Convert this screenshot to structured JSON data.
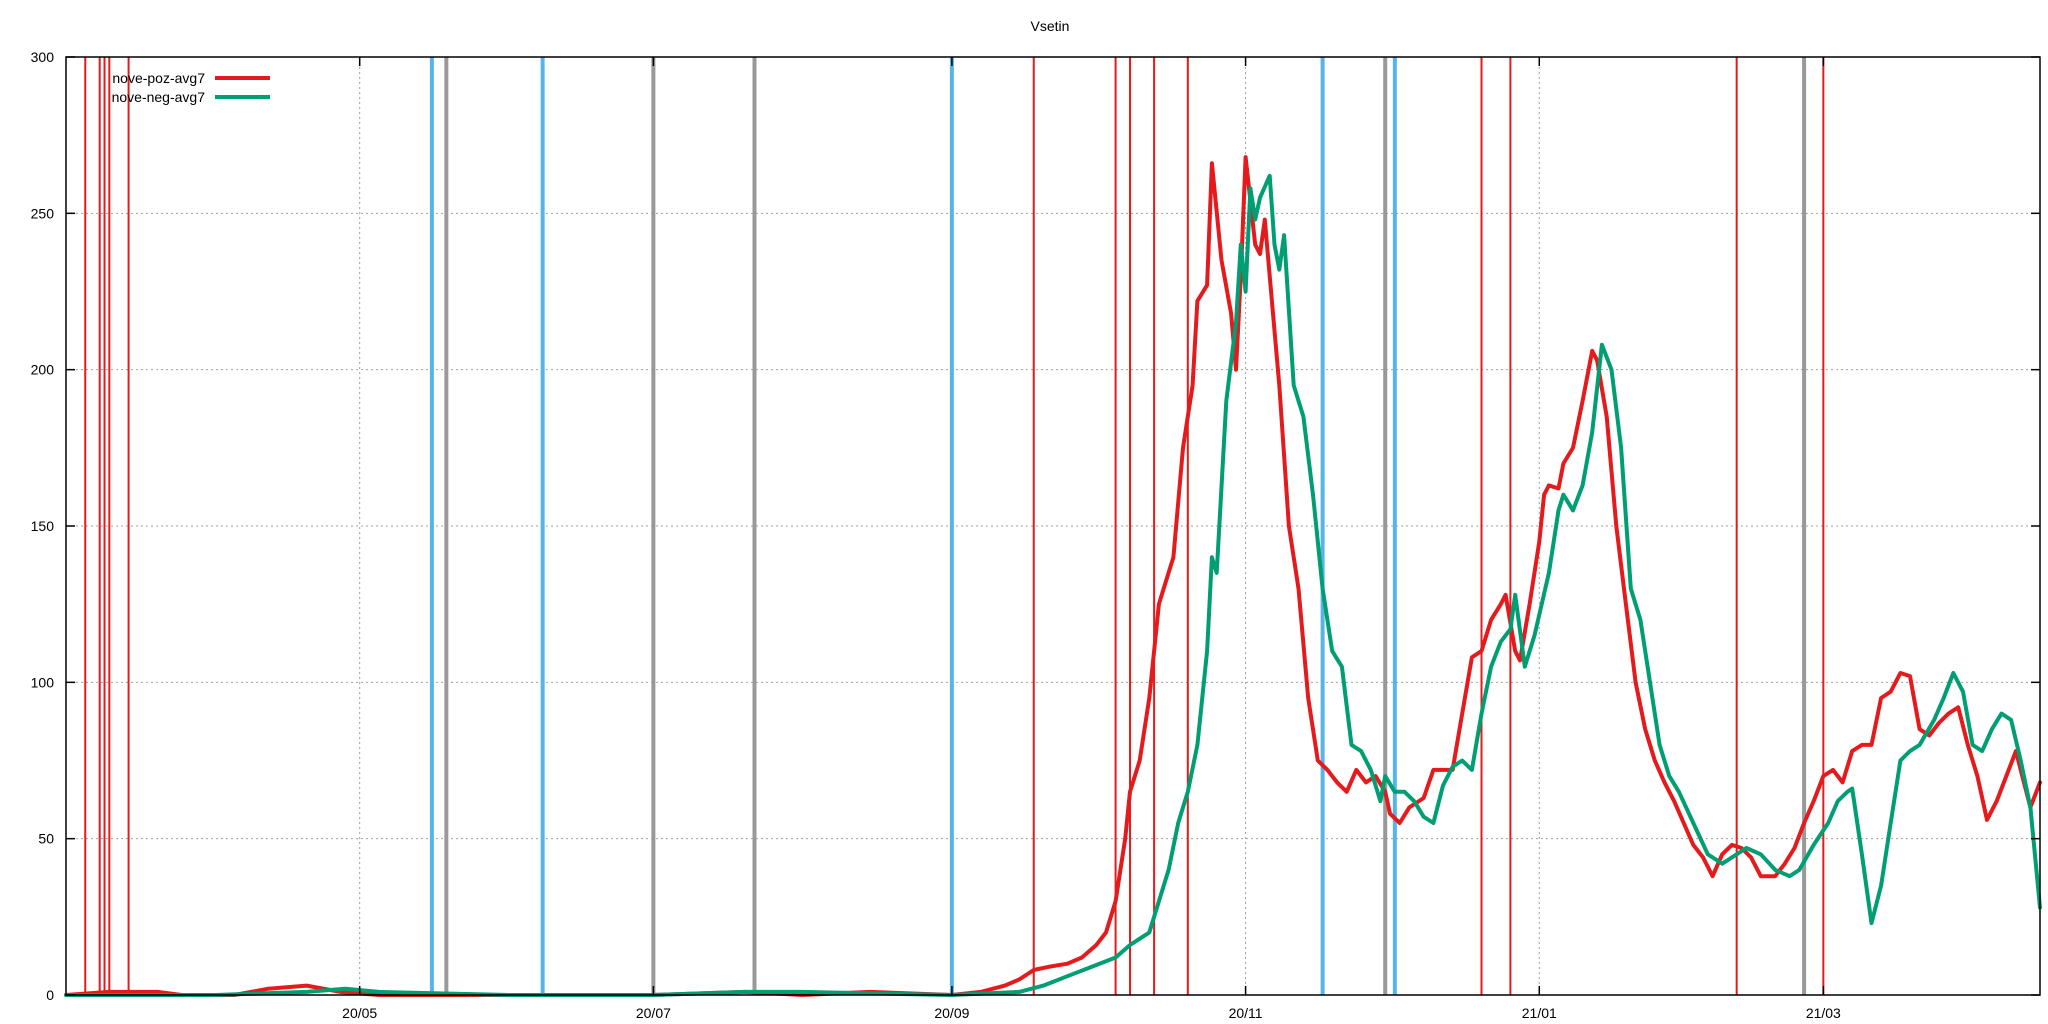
{
  "chart_data": {
    "type": "line",
    "title": "Vsetin",
    "xlabel": "",
    "ylabel": "",
    "x_axis": {
      "type": "date",
      "range": [
        "2020-03-01",
        "2021-04-15"
      ],
      "ticks": [
        {
          "date": "2020-05-01",
          "label": "20/05"
        },
        {
          "date": "2020-07-01",
          "label": "20/07"
        },
        {
          "date": "2020-09-01",
          "label": "20/09"
        },
        {
          "date": "2020-11-01",
          "label": "20/11"
        },
        {
          "date": "2021-01-01",
          "label": "21/01"
        },
        {
          "date": "2021-03-01",
          "label": "21/03"
        }
      ]
    },
    "y_axis": {
      "range": [
        0,
        300
      ],
      "ticks": [
        0,
        50,
        100,
        150,
        200,
        250,
        300
      ]
    },
    "grid": true,
    "legend_position": "top-left",
    "series": [
      {
        "name": "nove-poz-avg7",
        "color": "#e41a1c",
        "points": [
          [
            "2020-03-01",
            0
          ],
          [
            "2020-03-10",
            1
          ],
          [
            "2020-03-20",
            1
          ],
          [
            "2020-03-25",
            0
          ],
          [
            "2020-04-05",
            0
          ],
          [
            "2020-04-12",
            2
          ],
          [
            "2020-04-20",
            3
          ],
          [
            "2020-04-27",
            1
          ],
          [
            "2020-05-05",
            0
          ],
          [
            "2020-06-01",
            0
          ],
          [
            "2020-07-01",
            0
          ],
          [
            "2020-07-20",
            1
          ],
          [
            "2020-08-01",
            0
          ],
          [
            "2020-08-15",
            1
          ],
          [
            "2020-09-01",
            0
          ],
          [
            "2020-09-07",
            1
          ],
          [
            "2020-09-12",
            3
          ],
          [
            "2020-09-15",
            5
          ],
          [
            "2020-09-18",
            8
          ],
          [
            "2020-09-21",
            9
          ],
          [
            "2020-09-25",
            10
          ],
          [
            "2020-09-28",
            12
          ],
          [
            "2020-10-01",
            16
          ],
          [
            "2020-10-03",
            20
          ],
          [
            "2020-10-05",
            30
          ],
          [
            "2020-10-07",
            50
          ],
          [
            "2020-10-08",
            65
          ],
          [
            "2020-10-10",
            75
          ],
          [
            "2020-10-12",
            95
          ],
          [
            "2020-10-14",
            125
          ],
          [
            "2020-10-15",
            130
          ],
          [
            "2020-10-17",
            140
          ],
          [
            "2020-10-19",
            175
          ],
          [
            "2020-10-21",
            195
          ],
          [
            "2020-10-22",
            222
          ],
          [
            "2020-10-24",
            227
          ],
          [
            "2020-10-25",
            266
          ],
          [
            "2020-10-27",
            235
          ],
          [
            "2020-10-29",
            218
          ],
          [
            "2020-10-30",
            200
          ],
          [
            "2020-10-31",
            230
          ],
          [
            "2020-11-01",
            268
          ],
          [
            "2020-11-03",
            240
          ],
          [
            "2020-11-04",
            237
          ],
          [
            "2020-11-05",
            248
          ],
          [
            "2020-11-06",
            230
          ],
          [
            "2020-11-08",
            195
          ],
          [
            "2020-11-10",
            150
          ],
          [
            "2020-11-12",
            130
          ],
          [
            "2020-11-14",
            95
          ],
          [
            "2020-11-16",
            75
          ],
          [
            "2020-11-18",
            72
          ],
          [
            "2020-11-20",
            68
          ],
          [
            "2020-11-22",
            65
          ],
          [
            "2020-11-24",
            72
          ],
          [
            "2020-11-26",
            68
          ],
          [
            "2020-11-28",
            70
          ],
          [
            "2020-11-30",
            65
          ],
          [
            "2020-12-01",
            58
          ],
          [
            "2020-12-03",
            55
          ],
          [
            "2020-12-05",
            60
          ],
          [
            "2020-12-08",
            63
          ],
          [
            "2020-12-10",
            72
          ],
          [
            "2020-12-14",
            72
          ],
          [
            "2020-12-16",
            90
          ],
          [
            "2020-12-18",
            108
          ],
          [
            "2020-12-20",
            110
          ],
          [
            "2020-12-22",
            120
          ],
          [
            "2020-12-24",
            125
          ],
          [
            "2020-12-25",
            128
          ],
          [
            "2020-12-27",
            110
          ],
          [
            "2020-12-28",
            107
          ],
          [
            "2020-12-30",
            125
          ],
          [
            "2021-01-01",
            145
          ],
          [
            "2021-01-02",
            160
          ],
          [
            "2021-01-03",
            163
          ],
          [
            "2021-01-05",
            162
          ],
          [
            "2021-01-06",
            170
          ],
          [
            "2021-01-08",
            175
          ],
          [
            "2021-01-10",
            190
          ],
          [
            "2021-01-12",
            206
          ],
          [
            "2021-01-13",
            203
          ],
          [
            "2021-01-15",
            185
          ],
          [
            "2021-01-17",
            150
          ],
          [
            "2021-01-19",
            125
          ],
          [
            "2021-01-21",
            100
          ],
          [
            "2021-01-23",
            85
          ],
          [
            "2021-01-25",
            75
          ],
          [
            "2021-01-27",
            68
          ],
          [
            "2021-01-29",
            62
          ],
          [
            "2021-01-31",
            55
          ],
          [
            "2021-02-02",
            48
          ],
          [
            "2021-02-04",
            44
          ],
          [
            "2021-02-06",
            38
          ],
          [
            "2021-02-08",
            45
          ],
          [
            "2021-02-10",
            48
          ],
          [
            "2021-02-12",
            47
          ],
          [
            "2021-02-14",
            44
          ],
          [
            "2021-02-16",
            38
          ],
          [
            "2021-02-19",
            38
          ],
          [
            "2021-02-21",
            42
          ],
          [
            "2021-02-23",
            47
          ],
          [
            "2021-02-25",
            55
          ],
          [
            "2021-02-27",
            62
          ],
          [
            "2021-03-01",
            70
          ],
          [
            "2021-03-03",
            72
          ],
          [
            "2021-03-05",
            68
          ],
          [
            "2021-03-07",
            78
          ],
          [
            "2021-03-09",
            80
          ],
          [
            "2021-03-11",
            80
          ],
          [
            "2021-03-13",
            95
          ],
          [
            "2021-03-15",
            97
          ],
          [
            "2021-03-17",
            103
          ],
          [
            "2021-03-19",
            102
          ],
          [
            "2021-03-21",
            85
          ],
          [
            "2021-03-23",
            83
          ],
          [
            "2021-03-25",
            87
          ],
          [
            "2021-03-27",
            90
          ],
          [
            "2021-03-29",
            92
          ],
          [
            "2021-03-31",
            80
          ],
          [
            "2021-04-02",
            70
          ],
          [
            "2021-04-04",
            56
          ],
          [
            "2021-04-06",
            62
          ],
          [
            "2021-04-08",
            70
          ],
          [
            "2021-04-10",
            78
          ],
          [
            "2021-04-11",
            72
          ],
          [
            "2021-04-13",
            60
          ],
          [
            "2021-04-15",
            68
          ]
        ]
      },
      {
        "name": "nove-neg-avg7",
        "color": "#009e73",
        "points": [
          [
            "2020-03-01",
            0
          ],
          [
            "2020-04-01",
            0
          ],
          [
            "2020-04-20",
            1
          ],
          [
            "2020-04-28",
            2
          ],
          [
            "2020-05-05",
            1
          ],
          [
            "2020-06-01",
            0
          ],
          [
            "2020-07-01",
            0
          ],
          [
            "2020-07-20",
            1
          ],
          [
            "2020-08-01",
            1
          ],
          [
            "2020-09-01",
            0
          ],
          [
            "2020-09-15",
            1
          ],
          [
            "2020-09-20",
            3
          ],
          [
            "2020-09-25",
            6
          ],
          [
            "2020-09-30",
            9
          ],
          [
            "2020-10-05",
            12
          ],
          [
            "2020-10-08",
            16
          ],
          [
            "2020-10-12",
            20
          ],
          [
            "2020-10-14",
            30
          ],
          [
            "2020-10-16",
            40
          ],
          [
            "2020-10-18",
            55
          ],
          [
            "2020-10-20",
            65
          ],
          [
            "2020-10-22",
            80
          ],
          [
            "2020-10-24",
            110
          ],
          [
            "2020-10-25",
            140
          ],
          [
            "2020-10-26",
            135
          ],
          [
            "2020-10-28",
            190
          ],
          [
            "2020-10-30",
            215
          ],
          [
            "2020-10-31",
            240
          ],
          [
            "2020-11-01",
            225
          ],
          [
            "2020-11-02",
            258
          ],
          [
            "2020-11-03",
            248
          ],
          [
            "2020-11-04",
            255
          ],
          [
            "2020-11-06",
            262
          ],
          [
            "2020-11-07",
            240
          ],
          [
            "2020-11-08",
            232
          ],
          [
            "2020-11-09",
            243
          ],
          [
            "2020-11-11",
            195
          ],
          [
            "2020-11-13",
            185
          ],
          [
            "2020-11-15",
            160
          ],
          [
            "2020-11-17",
            130
          ],
          [
            "2020-11-19",
            110
          ],
          [
            "2020-11-21",
            105
          ],
          [
            "2020-11-23",
            80
          ],
          [
            "2020-11-25",
            78
          ],
          [
            "2020-11-27",
            72
          ],
          [
            "2020-11-29",
            62
          ],
          [
            "2020-11-30",
            70
          ],
          [
            "2020-12-02",
            65
          ],
          [
            "2020-12-04",
            65
          ],
          [
            "2020-12-06",
            62
          ],
          [
            "2020-12-08",
            57
          ],
          [
            "2020-12-10",
            55
          ],
          [
            "2020-12-12",
            67
          ],
          [
            "2020-12-14",
            73
          ],
          [
            "2020-12-16",
            75
          ],
          [
            "2020-12-18",
            72
          ],
          [
            "2020-12-20",
            90
          ],
          [
            "2020-12-22",
            105
          ],
          [
            "2020-12-24",
            113
          ],
          [
            "2020-12-26",
            117
          ],
          [
            "2020-12-27",
            128
          ],
          [
            "2020-12-29",
            105
          ],
          [
            "2020-12-31",
            115
          ],
          [
            "2021-01-03",
            135
          ],
          [
            "2021-01-05",
            155
          ],
          [
            "2021-01-06",
            160
          ],
          [
            "2021-01-08",
            155
          ],
          [
            "2021-01-10",
            163
          ],
          [
            "2021-01-12",
            180
          ],
          [
            "2021-01-14",
            208
          ],
          [
            "2021-01-16",
            200
          ],
          [
            "2021-01-18",
            175
          ],
          [
            "2021-01-20",
            130
          ],
          [
            "2021-01-22",
            120
          ],
          [
            "2021-01-24",
            100
          ],
          [
            "2021-01-26",
            80
          ],
          [
            "2021-01-28",
            70
          ],
          [
            "2021-01-30",
            65
          ],
          [
            "2021-02-02",
            55
          ],
          [
            "2021-02-05",
            45
          ],
          [
            "2021-02-08",
            42
          ],
          [
            "2021-02-10",
            44
          ],
          [
            "2021-02-13",
            47
          ],
          [
            "2021-02-16",
            45
          ],
          [
            "2021-02-19",
            40
          ],
          [
            "2021-02-22",
            38
          ],
          [
            "2021-02-24",
            40
          ],
          [
            "2021-02-27",
            48
          ],
          [
            "2021-03-02",
            55
          ],
          [
            "2021-03-04",
            62
          ],
          [
            "2021-03-06",
            65
          ],
          [
            "2021-03-07",
            66
          ],
          [
            "2021-03-09",
            45
          ],
          [
            "2021-03-11",
            23
          ],
          [
            "2021-03-13",
            35
          ],
          [
            "2021-03-15",
            55
          ],
          [
            "2021-03-17",
            75
          ],
          [
            "2021-03-19",
            78
          ],
          [
            "2021-03-21",
            80
          ],
          [
            "2021-03-24",
            88
          ],
          [
            "2021-03-26",
            95
          ],
          [
            "2021-03-28",
            103
          ],
          [
            "2021-03-30",
            97
          ],
          [
            "2021-04-01",
            80
          ],
          [
            "2021-04-03",
            78
          ],
          [
            "2021-04-05",
            85
          ],
          [
            "2021-04-07",
            90
          ],
          [
            "2021-04-09",
            88
          ],
          [
            "2021-04-11",
            75
          ],
          [
            "2021-04-13",
            60
          ],
          [
            "2021-04-15",
            28
          ]
        ]
      }
    ],
    "vertical_lines": [
      {
        "date": "2020-03-05",
        "color": "#e41a1c"
      },
      {
        "date": "2020-03-08",
        "color": "#e41a1c"
      },
      {
        "date": "2020-03-09",
        "color": "#e41a1c"
      },
      {
        "date": "2020-03-10",
        "color": "#e41a1c"
      },
      {
        "date": "2020-03-14",
        "color": "#e41a1c"
      },
      {
        "date": "2020-05-16",
        "color": "#56b4e9"
      },
      {
        "date": "2020-05-19",
        "color": "#999999"
      },
      {
        "date": "2020-06-08",
        "color": "#56b4e9"
      },
      {
        "date": "2020-07-01",
        "color": "#999999"
      },
      {
        "date": "2020-07-22",
        "color": "#999999"
      },
      {
        "date": "2020-09-01",
        "color": "#56b4e9"
      },
      {
        "date": "2020-09-18",
        "color": "#e41a1c"
      },
      {
        "date": "2020-10-05",
        "color": "#e41a1c"
      },
      {
        "date": "2020-10-08",
        "color": "#e41a1c"
      },
      {
        "date": "2020-10-13",
        "color": "#e41a1c"
      },
      {
        "date": "2020-10-20",
        "color": "#e41a1c"
      },
      {
        "date": "2020-11-17",
        "color": "#56b4e9"
      },
      {
        "date": "2020-11-30",
        "color": "#999999"
      },
      {
        "date": "2020-12-02",
        "color": "#56b4e9"
      },
      {
        "date": "2020-12-20",
        "color": "#e41a1c"
      },
      {
        "date": "2020-12-26",
        "color": "#e41a1c"
      },
      {
        "date": "2021-02-11",
        "color": "#e41a1c"
      },
      {
        "date": "2021-02-25",
        "color": "#999999"
      },
      {
        "date": "2021-03-01",
        "color": "#e41a1c"
      }
    ]
  }
}
